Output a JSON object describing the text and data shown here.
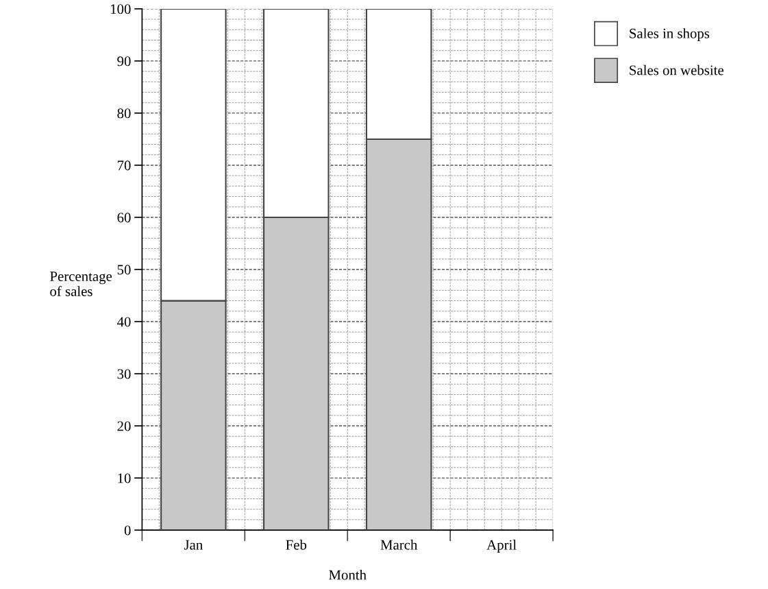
{
  "chart_data": {
    "type": "bar",
    "stacked": true,
    "xlabel": "Month",
    "ylabel": "Percentage\nof sales",
    "categories": [
      "Jan",
      "Feb",
      "March",
      "April"
    ],
    "series": [
      {
        "name": "Sales on website",
        "color": "#c8c8c8",
        "values": [
          44,
          60,
          75,
          null
        ]
      },
      {
        "name": "Sales in shops",
        "color": "#ffffff",
        "values": [
          56,
          40,
          25,
          null
        ]
      }
    ],
    "ylim": [
      0,
      100
    ],
    "yticks": [
      0,
      10,
      20,
      30,
      40,
      50,
      60,
      70,
      80,
      90,
      100
    ],
    "grid": true,
    "legend": "top right"
  }
}
